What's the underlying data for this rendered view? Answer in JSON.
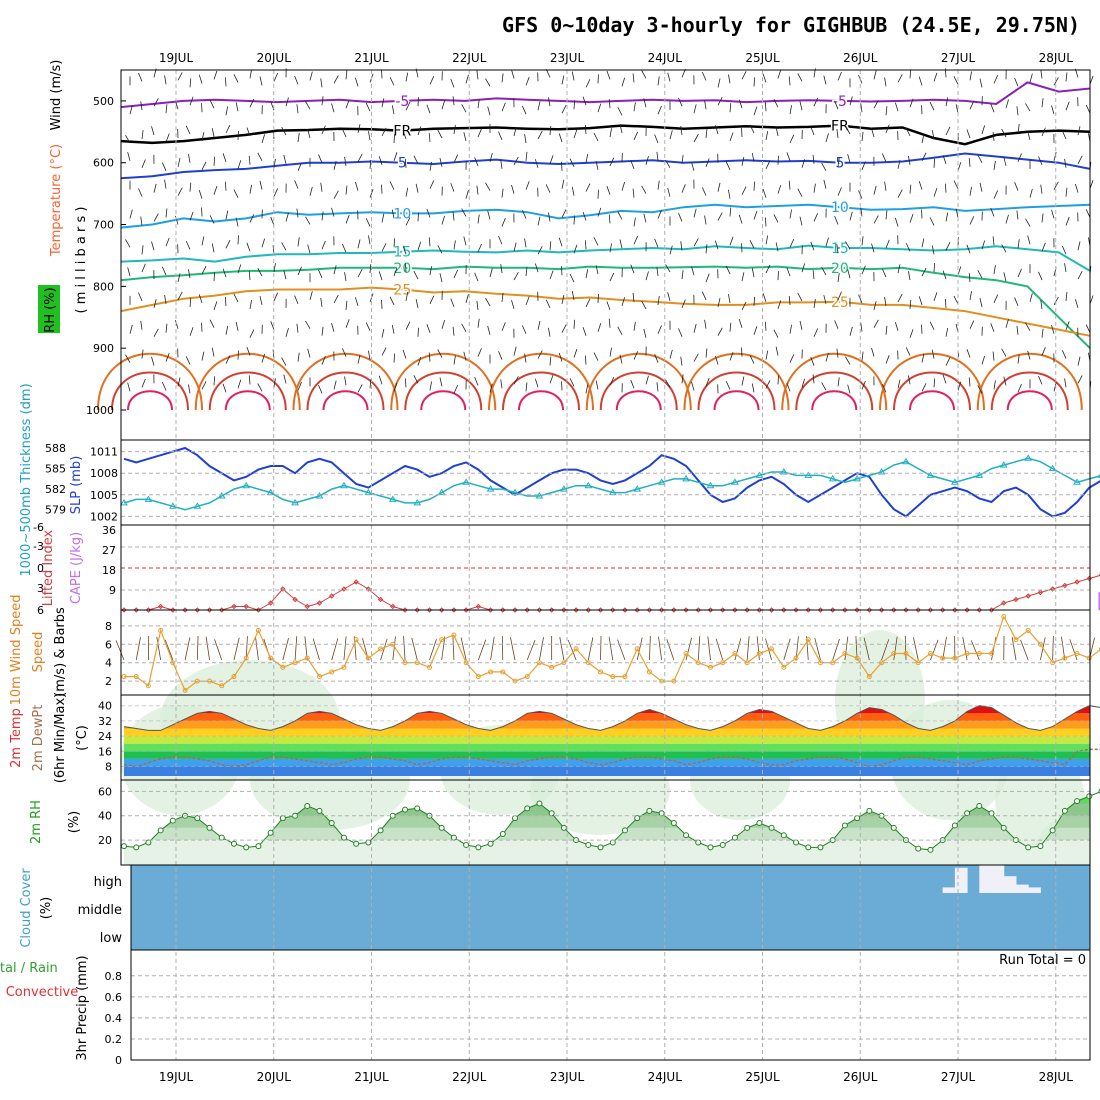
{
  "title": "GFS 0~10day 3-hourly for GIGHBUB (24.5E, 29.75N)",
  "chart_data": {
    "type": "line",
    "days": [
      "19JUL",
      "20JUL",
      "21JUL",
      "22JUL",
      "23JUL",
      "24JUL",
      "25JUL",
      "26JUL",
      "27JUL",
      "28JUL"
    ],
    "upper_air": {
      "ylabels": [
        "Wind (m/s)",
        "Temperature (°C)",
        "RH (%)",
        "( m i l l i b a r s )"
      ],
      "yticks": [
        500,
        600,
        700,
        800,
        900,
        1000
      ],
      "ylim": [
        450,
        1000
      ],
      "temperature_contours": [
        {
          "label": "-5",
          "color": "#8b1fb8",
          "p": [
            510,
            505,
            500,
            498,
            500,
            502,
            500,
            498,
            502,
            500,
            498,
            500,
            496,
            498,
            500,
            502,
            500,
            498,
            500,
            499,
            502,
            500,
            499,
            500,
            501,
            500,
            498,
            500,
            505,
            470,
            485,
            480
          ]
        },
        {
          "label": "FR",
          "color": "#000000",
          "p": [
            565,
            568,
            565,
            560,
            555,
            548,
            547,
            545,
            546,
            548,
            545,
            544,
            543,
            545,
            546,
            544,
            540,
            542,
            545,
            543,
            541,
            543,
            542,
            540,
            545,
            543,
            560,
            570,
            555,
            550,
            548,
            550
          ]
        },
        {
          "label": "5",
          "color": "#1f3fcf",
          "p": [
            625,
            622,
            615,
            612,
            610,
            605,
            600,
            600,
            598,
            600,
            602,
            598,
            595,
            600,
            602,
            600,
            598,
            596,
            600,
            598,
            596,
            598,
            597,
            600,
            600,
            598,
            592,
            585,
            590,
            595,
            600,
            610
          ]
        },
        {
          "label": "10",
          "color": "#1f9fe0",
          "p": [
            705,
            700,
            690,
            695,
            690,
            680,
            684,
            682,
            680,
            682,
            682,
            678,
            676,
            680,
            690,
            685,
            678,
            680,
            672,
            668,
            672,
            670,
            668,
            672,
            676,
            675,
            672,
            678,
            675,
            672,
            670,
            668
          ]
        },
        {
          "label": "15",
          "color": "#20b8b8",
          "p": [
            760,
            758,
            755,
            760,
            752,
            748,
            748,
            746,
            746,
            744,
            742,
            744,
            745,
            742,
            745,
            742,
            740,
            738,
            740,
            735,
            738,
            740,
            734,
            738,
            738,
            740,
            742,
            740,
            735,
            740,
            745,
            775
          ]
        },
        {
          "label": "20",
          "color": "#20b878",
          "p": [
            790,
            785,
            782,
            778,
            775,
            775,
            773,
            770,
            770,
            770,
            772,
            768,
            770,
            770,
            772,
            768,
            770,
            770,
            769,
            768,
            770,
            768,
            772,
            770,
            772,
            770,
            778,
            785,
            790,
            800,
            850,
            900
          ]
        },
        {
          "label": "25",
          "color": "#e09020",
          "p": [
            840,
            830,
            820,
            815,
            808,
            805,
            805,
            805,
            802,
            805,
            810,
            808,
            812,
            815,
            820,
            818,
            822,
            825,
            828,
            830,
            830,
            826,
            826,
            825,
            830,
            830,
            835,
            840,
            850,
            860,
            870,
            880
          ]
        }
      ]
    },
    "slp_thickness": {
      "ylabels": [
        "1000~500mb Thickness (dm)",
        "SLP (mb)"
      ],
      "left_ticks": [
        579,
        582,
        585,
        588
      ],
      "right_ticks": [
        1002,
        1005,
        1008,
        1011
      ],
      "series": [
        {
          "name": "SLP (mb)",
          "color": "#2040d0",
          "values": [
            1010,
            1009.5,
            1010,
            1010.5,
            1011,
            1011.5,
            1010.5,
            1009,
            1008,
            1007,
            1007.5,
            1008.5,
            1009,
            1009,
            1008,
            1009.5,
            1010,
            1009.5,
            1008,
            1006.5,
            1006,
            1007,
            1008,
            1009,
            1008.5,
            1007.5,
            1008,
            1009,
            1009.5,
            1008.5,
            1007,
            1006,
            1005,
            1006,
            1007,
            1008,
            1008.5,
            1008.5,
            1008,
            1007,
            1006.5,
            1007,
            1008,
            1009,
            1010.5,
            1010,
            1009,
            1007,
            1005,
            1004,
            1004.5,
            1006,
            1007,
            1007.5,
            1006.5,
            1005,
            1004,
            1005,
            1006,
            1007,
            1008,
            1007.5,
            1005,
            1003,
            1002,
            1003.5,
            1005,
            1005.5,
            1006,
            1005.5,
            1004.5,
            1004,
            1005.5,
            1006,
            1005,
            1003,
            1002,
            1002.5,
            1004,
            1006,
            1007,
            1007,
            1006.5,
            1006,
            1007,
            1008,
            1007.5,
            1006,
            1005,
            1006,
            1007,
            1008,
            1008,
            1009,
            1009.5
          ]
        },
        {
          "name": "1000~500mb Thickness (dm)",
          "color": "#20b0c0",
          "values": [
            580,
            580.5,
            580.5,
            580,
            579.5,
            579,
            579.5,
            580,
            581,
            582,
            582.5,
            582,
            581.5,
            580.5,
            580,
            580.5,
            581,
            582,
            582.5,
            582,
            581.5,
            581,
            580.5,
            580,
            580,
            580.5,
            581.5,
            582.5,
            583,
            582.5,
            582,
            582,
            581.5,
            581,
            581,
            581.5,
            582,
            582.5,
            582.5,
            582,
            581.5,
            581.5,
            582,
            582.5,
            583,
            583.5,
            583.5,
            583,
            582.5,
            582.5,
            583,
            583.5,
            584,
            584.5,
            584.5,
            584,
            584,
            584,
            583.5,
            583,
            583.5,
            584,
            584.5,
            585.5,
            586,
            585,
            584,
            583.5,
            583,
            583.5,
            584,
            585,
            585.5,
            586,
            586.5,
            586,
            585,
            584,
            583,
            583.5,
            584,
            584,
            583,
            582,
            582,
            582.5,
            582,
            582,
            581.5,
            582,
            582.5,
            582,
            581,
            580,
            579,
            578
          ]
        }
      ]
    },
    "lifted_cape": {
      "ylabels": [
        "Lifted Index",
        "CAPE (J/kg)"
      ],
      "left_ticks": [
        "-6",
        "-3",
        "0",
        "3",
        "6"
      ],
      "right_ticks": [
        "9",
        "18",
        "27",
        "36"
      ],
      "lifted_index": [
        6,
        6,
        6,
        5.5,
        6,
        6,
        6,
        6,
        6,
        5.5,
        5.5,
        6,
        5,
        3,
        4.5,
        5.5,
        5,
        4,
        3,
        2,
        3,
        4.5,
        5.5,
        6,
        6,
        6,
        6,
        6,
        6,
        5.5,
        6,
        6,
        6,
        6,
        6,
        6,
        6,
        6,
        6,
        6,
        6,
        6,
        6,
        6,
        6,
        6,
        6,
        6,
        6,
        6,
        6,
        6,
        6,
        6,
        6,
        6,
        6,
        6,
        6,
        6,
        6,
        6,
        6,
        6,
        6,
        6,
        6,
        6,
        6,
        6,
        6,
        6,
        5,
        4.5,
        4,
        3.5,
        3,
        2.5,
        2,
        1.5,
        1,
        1.5,
        2,
        3,
        4.5,
        5.5,
        6,
        6,
        6,
        6,
        6,
        6,
        6,
        6,
        6,
        6,
        6,
        6,
        6,
        5.5,
        6
      ],
      "cape_bars": [
        {
          "index": 80,
          "value": 8
        },
        {
          "index": 82,
          "value": 34
        }
      ]
    },
    "wind10m": {
      "ylabels": [
        "10m Wind Speed",
        "(m/s) & Barbs"
      ],
      "yticks": [
        2,
        4,
        6,
        8
      ],
      "values": [
        2.5,
        2.5,
        1.5,
        7.5,
        4,
        1,
        2,
        2,
        1.5,
        2.5,
        4.5,
        7.5,
        4.5,
        3.5,
        4,
        4.5,
        2.5,
        3,
        3.5,
        6.5,
        4.5,
        5.5,
        6,
        4,
        4,
        3.5,
        6.5,
        7,
        4,
        2.5,
        3,
        3,
        2,
        2.5,
        4,
        3.5,
        4,
        5.5,
        4,
        3,
        2.5,
        2.5,
        5.5,
        3,
        2,
        2,
        5,
        4,
        3.5,
        4,
        5,
        4,
        5,
        5.5,
        3.5,
        4.5,
        6.5,
        4,
        4,
        5,
        4.5,
        2.5,
        4,
        5,
        5,
        4,
        5,
        4.5,
        4.5,
        5,
        5,
        5,
        9,
        6.5,
        7.5,
        6,
        4,
        4.5,
        5,
        4.5,
        5.5,
        5,
        4.5,
        3.5,
        4,
        5,
        4,
        5,
        5,
        3.5,
        5,
        4.5,
        5,
        3.5,
        5
      ]
    },
    "temp2m": {
      "ylabels": [
        "2m Temp",
        "2m DewPt",
        "(6hr Min/Max)",
        "(°C)"
      ],
      "yticks": [
        8,
        16,
        24,
        32,
        40
      ],
      "temp": [
        29,
        28,
        27,
        27,
        30,
        33,
        36,
        37,
        36,
        33,
        30,
        28,
        27,
        29,
        32,
        36,
        37,
        36,
        33,
        30,
        28,
        27,
        29,
        32,
        36,
        37,
        36,
        33,
        30,
        28,
        27,
        29,
        32,
        36,
        37,
        36,
        33,
        30,
        28,
        27,
        29,
        32,
        36,
        38,
        36,
        33,
        30,
        28,
        27,
        29,
        32,
        36,
        38,
        37,
        34,
        31,
        28,
        27,
        29,
        32,
        36,
        39,
        38,
        35,
        31,
        28,
        27,
        29,
        32,
        37,
        40,
        39,
        35,
        31,
        28,
        27,
        29,
        33,
        37,
        40,
        39,
        35,
        31,
        28,
        27,
        29,
        32,
        36,
        37,
        35,
        32,
        29,
        27,
        26,
        25
      ],
      "dewpt": [
        9,
        8,
        10,
        12,
        13,
        13,
        12,
        11,
        9,
        8,
        9,
        11,
        13,
        13,
        12,
        11,
        10,
        9,
        10,
        12,
        13,
        13,
        12,
        11,
        9,
        10,
        12,
        13,
        13,
        12,
        11,
        10,
        9,
        11,
        12,
        13,
        13,
        12,
        10,
        9,
        10,
        12,
        13,
        13,
        12,
        11,
        9,
        10,
        12,
        13,
        13,
        12,
        10,
        9,
        9,
        11,
        12,
        13,
        13,
        12,
        10,
        8,
        9,
        11,
        13,
        13,
        12,
        11,
        10,
        9,
        11,
        12,
        13,
        13,
        12,
        11,
        10,
        9,
        16,
        17,
        17,
        17,
        16,
        15,
        16,
        17,
        17,
        17,
        16,
        16,
        17,
        17,
        18,
        17,
        17
      ]
    },
    "rh2m": {
      "ylabels": [
        "2m RH",
        "(%)"
      ],
      "yticks": [
        20,
        40,
        60
      ],
      "values": [
        15,
        14,
        18,
        28,
        36,
        40,
        38,
        30,
        22,
        17,
        14,
        15,
        26,
        38,
        40,
        48,
        44,
        34,
        22,
        17,
        18,
        28,
        40,
        45,
        46,
        40,
        30,
        22,
        16,
        14,
        17,
        25,
        38,
        46,
        50,
        42,
        30,
        20,
        16,
        14,
        18,
        28,
        38,
        44,
        42,
        34,
        24,
        18,
        14,
        16,
        22,
        30,
        34,
        30,
        24,
        18,
        14,
        14,
        20,
        32,
        38,
        44,
        40,
        30,
        20,
        13,
        12,
        20,
        32,
        42,
        48,
        42,
        30,
        20,
        14,
        15,
        28,
        44,
        52,
        56,
        60,
        52,
        38,
        24,
        18,
        20,
        32,
        46,
        58,
        64,
        60
      ]
    },
    "cloud": {
      "ylabels": [
        "Cloud Cover",
        "(%)"
      ],
      "levels": [
        "high",
        "middle",
        "low"
      ],
      "high_blocks": [
        {
          "index": 67,
          "frac": 0.2
        },
        {
          "index": 68,
          "frac": 0.9
        },
        {
          "index": 70,
          "frac": 1.0
        },
        {
          "index": 71,
          "frac": 1.0
        },
        {
          "index": 72,
          "frac": 0.6
        },
        {
          "index": 73,
          "frac": 0.3
        },
        {
          "index": 74,
          "frac": 0.2
        },
        {
          "index": 83,
          "frac": 0.1
        }
      ]
    },
    "precip": {
      "ylabels": [
        "Total / Rain",
        "Convective",
        "3hr Precip (mm)"
      ],
      "yticks": [
        "0",
        "0.2",
        "0.4",
        "0.6",
        "0.8"
      ],
      "run_total": "Run Total = 0"
    }
  }
}
